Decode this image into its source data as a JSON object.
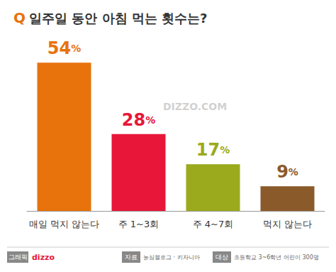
{
  "chart_data": {
    "type": "bar",
    "title": "Q 일주일 동안 아침 먹는 횟수는?",
    "categories": [
      "매일 먹지 않는다",
      "주 1~3회",
      "주 4~7회",
      "먹지 않는다"
    ],
    "values": [
      54,
      28,
      17,
      9
    ],
    "value_labels": [
      "54%",
      "28%",
      "17%",
      "9%"
    ],
    "colors": [
      "#e8720c",
      "#e8173a",
      "#9aaa1c",
      "#8b5a2b"
    ],
    "ylim": [
      0,
      60
    ],
    "tick_labels": "x",
    "grid": false,
    "data_labels": true,
    "annotations": [
      "DIZZO.COM",
      "그래픽",
      "dizzo",
      "자료",
      "농심켈로그 · 키자니아",
      "대상",
      "초등학교 3~6학년 어린이 300명"
    ]
  }
}
